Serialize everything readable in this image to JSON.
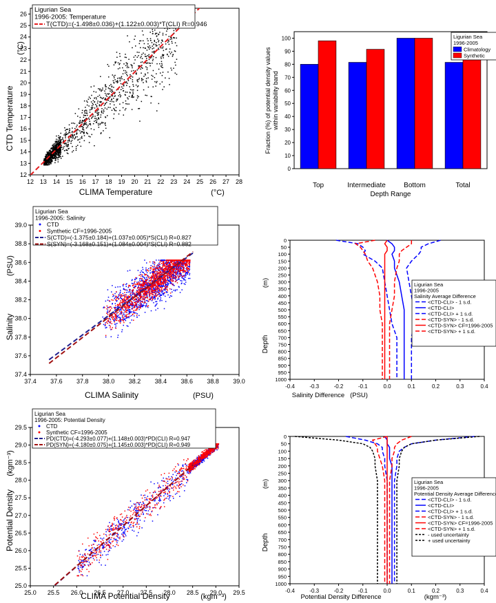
{
  "chart_data": [
    {
      "type": "scatter",
      "legend_title": "Ligurian Sea",
      "legend_subtitle": "1996-2005: Temperature",
      "xlabel": "CLIMA Temperature",
      "xunit": "(°C)",
      "ylabel": "CTD Temperature",
      "yunit": "(°C)",
      "xlim": [
        12,
        28
      ],
      "ylim": [
        12,
        26.5
      ],
      "xticks": [
        "12",
        "13",
        "14",
        "15",
        "16",
        "17",
        "18",
        "19",
        "20",
        "21",
        "22",
        "23",
        "24",
        "25",
        "26",
        "27",
        "28"
      ],
      "yticks": [
        "12",
        "13",
        "14",
        "15",
        "16",
        "17",
        "18",
        "19",
        "20",
        "21",
        "22",
        "23",
        "24",
        "25",
        "26"
      ],
      "fits": [
        {
          "label": "T(CTD)=(-1.498±0.036)+(1.122±0.003)*T(CLI) R=0.946",
          "intercept": -1.498,
          "slope": 1.122,
          "color": "#e41a1c"
        }
      ],
      "point_colors": [
        "#000000"
      ]
    },
    {
      "type": "bar",
      "legend_title": "Ligurian Sea",
      "legend_subtitle": "1996-2005",
      "xlabel": "Depth Range",
      "ylabel": "Fraction (%) of potential density values within variability band",
      "ylabel_lines": [
        "Fraction (%) of potential density values",
        "within variability band"
      ],
      "ylim": [
        0,
        105
      ],
      "yticks": [
        "0",
        "10",
        "20",
        "30",
        "40",
        "50",
        "60",
        "70",
        "80",
        "90",
        "100"
      ],
      "categories": [
        "Top",
        "Intermediate",
        "Bottom",
        "Total"
      ],
      "series": [
        {
          "name": "Climatology",
          "values": [
            80,
            81.5,
            100,
            81.5
          ],
          "color": "#0000ff"
        },
        {
          "name": "Synthetic",
          "values": [
            98,
            91.5,
            100,
            93
          ],
          "color": "#ff0000"
        }
      ]
    },
    {
      "type": "scatter",
      "legend_title": "Ligurian Sea",
      "legend_subtitle": "1996-2005: Salinity",
      "xlabel": "CLIMA Salinity",
      "xunit": "(PSU)",
      "ylabel": "Salinity",
      "yunit": "(PSU)",
      "xlim": [
        37.4,
        39.0
      ],
      "ylim": [
        37.4,
        39.0
      ],
      "xticks": [
        "37.4",
        "37.6",
        "37.8",
        "38.0",
        "38.2",
        "38.4",
        "38.6",
        "38.8",
        "39.0"
      ],
      "yticks": [
        "37.4",
        "37.6",
        "37.8",
        "38.0",
        "38.2",
        "38.4",
        "38.6",
        "38.8",
        "39.0"
      ],
      "series": [
        {
          "name": "CTD",
          "color": "#0000ff"
        },
        {
          "name": "Synthetic CF=1996-2005",
          "color": "#ff0000"
        }
      ],
      "fits": [
        {
          "label": "S(CTD)=(-1.375±0.184)+(1.037±0.005)*S(CLI) R=0.827",
          "intercept": -1.375,
          "slope": 1.037,
          "color": "#1f1f8f"
        },
        {
          "label": "S(SYN)=(-3.168±0.151)+(1.084±0.004)*S(CLI) R=0.882",
          "intercept": -3.168,
          "slope": 1.084,
          "color": "#a01010"
        }
      ]
    },
    {
      "type": "line",
      "legend_title": "Ligurian Sea",
      "legend_subtitle": "1996-2005",
      "legend_subtitle2": "Salinity Average Difference",
      "xlabel": "Salinity Difference",
      "xunit": "(PSU)",
      "ylabel": "Depth",
      "yunit": "(m)",
      "xlim": [
        -0.4,
        0.4
      ],
      "ylim": [
        0,
        1000
      ],
      "xticks": [
        "-0.4",
        "-0.3",
        "-0.2",
        "-0.1",
        "0.0",
        "0.1",
        "0.2",
        "0.3",
        "0.4"
      ],
      "yticks": [
        "0",
        "50",
        "100",
        "150",
        "200",
        "250",
        "300",
        "350",
        "400",
        "450",
        "500",
        "550",
        "600",
        "650",
        "700",
        "750",
        "800",
        "850",
        "900",
        "950",
        "1000"
      ],
      "depths": [
        0,
        25,
        50,
        75,
        100,
        150,
        200,
        300,
        400,
        500,
        600,
        700,
        800,
        900,
        1000
      ],
      "series": [
        {
          "name": "<CTD-CLI> - 1 s.d.",
          "color": "#0000ff",
          "dash": "6,3",
          "values": [
            -0.21,
            -0.12,
            -0.1,
            -0.09,
            -0.1,
            -0.05,
            -0.02,
            -0.01,
            0.0,
            0.01,
            0.02,
            0.04,
            0.04,
            0.04,
            0.04
          ]
        },
        {
          "name": "<CTD-CLI>",
          "color": "#0000ff",
          "dash": "",
          "values": [
            0.0,
            0.02,
            0.03,
            0.03,
            0.02,
            0.03,
            0.03,
            0.05,
            0.06,
            0.07,
            0.07,
            0.07,
            0.07,
            0.07,
            0.07
          ]
        },
        {
          "name": "<CTD-CLI> + 1 s.d.",
          "color": "#0000ff",
          "dash": "6,3",
          "values": [
            0.22,
            0.17,
            0.14,
            0.14,
            0.13,
            0.1,
            0.08,
            0.09,
            0.1,
            0.11,
            0.11,
            0.1,
            0.1,
            0.1,
            0.1
          ]
        },
        {
          "name": "<CTD-SYN> - 1 s.d.",
          "color": "#ff0000",
          "dash": "6,3",
          "values": [
            -0.05,
            -0.13,
            -0.11,
            -0.1,
            -0.09,
            -0.08,
            -0.06,
            -0.04,
            -0.03,
            -0.03,
            -0.02,
            -0.02,
            -0.02,
            -0.02,
            -0.02
          ]
        },
        {
          "name": "<CTD-SYN> CF=1996-2005",
          "color": "#ff0000",
          "dash": "",
          "values": [
            0.0,
            -0.01,
            0.0,
            0.0,
            -0.01,
            -0.01,
            -0.01,
            -0.01,
            -0.01,
            -0.01,
            -0.01,
            -0.01,
            -0.01,
            -0.01,
            -0.01
          ]
        },
        {
          "name": "<CTD-SYN> + 1 s.d.",
          "color": "#ff0000",
          "dash": "6,3",
          "values": [
            0.1,
            0.1,
            0.08,
            0.06,
            0.05,
            0.05,
            0.04,
            0.03,
            0.03,
            0.02,
            0.01,
            0.01,
            0.01,
            0.01,
            0.01
          ]
        }
      ]
    },
    {
      "type": "scatter",
      "legend_title": "Ligurian Sea",
      "legend_subtitle": "1996-2005: Potential Density",
      "xlabel": "CLIMA Potential Density",
      "xunit": "(kgm⁻³)",
      "ylabel": "Potential Density",
      "yunit": "(kgm⁻³)",
      "xlim": [
        25.0,
        29.5
      ],
      "ylim": [
        25.0,
        29.5
      ],
      "xticks": [
        "25.0",
        "25.5",
        "26.0",
        "26.5",
        "27.0",
        "27.5",
        "28.0",
        "28.5",
        "29.0",
        "29.5"
      ],
      "yticks": [
        "25.0",
        "25.5",
        "26.0",
        "26.5",
        "27.0",
        "27.5",
        "28.0",
        "28.5",
        "29.0",
        "29.5"
      ],
      "series": [
        {
          "name": "CTD",
          "color": "#0000ff"
        },
        {
          "name": "Synthetic CF=1996-2005",
          "color": "#ff0000"
        }
      ],
      "fits": [
        {
          "label": "PD(CTD)=(-4.293±0.077)+(1.148±0.003)*PD(CLI) R=0.947",
          "intercept": -4.293,
          "slope": 1.148,
          "color": "#1f1f8f"
        },
        {
          "label": "PD(SYN)=(-4.180±0.075)+(1.145±0.003)*PD(CLI) R=0.949",
          "intercept": -4.18,
          "slope": 1.145,
          "color": "#a01010"
        }
      ]
    },
    {
      "type": "line",
      "legend_title": "Ligurian Sea",
      "legend_subtitle": "1996-2005",
      "legend_subtitle2": "Potential Density Average Difference",
      "xlabel": "Potential Density Difference",
      "xunit": "(kgm⁻³)",
      "ylabel": "Depth",
      "yunit": "(m)",
      "xlim": [
        -0.4,
        0.4
      ],
      "ylim": [
        0,
        1000
      ],
      "xticks": [
        "-0.4",
        "-0.3",
        "-0.2",
        "-0.1",
        "0.0",
        "0.1",
        "0.2",
        "0.3",
        "0.4"
      ],
      "yticks": [
        "0",
        "50",
        "100",
        "150",
        "200",
        "250",
        "300",
        "350",
        "400",
        "450",
        "500",
        "550",
        "600",
        "650",
        "700",
        "750",
        "800",
        "850",
        "900",
        "950",
        "1000"
      ],
      "depths": [
        0,
        25,
        50,
        75,
        100,
        150,
        200,
        300,
        400,
        500,
        600,
        700,
        800,
        900,
        1000
      ],
      "series": [
        {
          "name": "<CTD-CLI> - 1 s.d.",
          "color": "#0000ff",
          "dash": "6,3",
          "values": [
            -0.17,
            -0.09,
            -0.04,
            -0.02,
            -0.02,
            -0.01,
            -0.01,
            0.0,
            0.0,
            0.0,
            0.0,
            0.0,
            0.0,
            0.0,
            0.0
          ]
        },
        {
          "name": "<CTD-CLI>",
          "color": "#0000ff",
          "dash": "",
          "values": [
            -0.01,
            0.0,
            0.0,
            0.01,
            0.01,
            0.01,
            0.02,
            0.02,
            0.02,
            0.02,
            0.02,
            0.02,
            0.02,
            0.02,
            0.02
          ]
        },
        {
          "name": "<CTD-CLI> + 1 s.d.",
          "color": "#0000ff",
          "dash": "6,3",
          "values": [
            0.36,
            0.2,
            0.1,
            0.07,
            0.05,
            0.04,
            0.04,
            0.03,
            0.03,
            0.03,
            0.03,
            0.03,
            0.03,
            0.03,
            0.03
          ]
        },
        {
          "name": "<CTD-SYN> - 1 s.d.",
          "color": "#ff0000",
          "dash": "6,3",
          "values": [
            0.0,
            -0.06,
            -0.05,
            -0.04,
            -0.04,
            -0.03,
            -0.02,
            -0.01,
            -0.01,
            -0.01,
            -0.01,
            -0.01,
            -0.01,
            -0.01,
            -0.01
          ]
        },
        {
          "name": "<CTD-SYN> CF=1996-2005",
          "color": "#ff0000",
          "dash": "",
          "values": [
            0.0,
            0.0,
            0.0,
            0.0,
            0.0,
            0.0,
            0.0,
            0.0,
            0.0,
            0.0,
            0.0,
            0.0,
            0.0,
            0.0,
            0.0
          ]
        },
        {
          "name": "<CTD-SYN> + 1 s.d.",
          "color": "#ff0000",
          "dash": "6,3",
          "values": [
            0.1,
            0.06,
            0.04,
            0.03,
            0.03,
            0.02,
            0.02,
            0.01,
            0.01,
            0.01,
            0.01,
            0.01,
            0.01,
            0.01,
            0.01
          ]
        },
        {
          "name": "- used uncertainty",
          "color": "#000000",
          "dash": "3,2",
          "values": [
            -0.38,
            -0.2,
            -0.1,
            -0.07,
            -0.06,
            -0.05,
            -0.05,
            -0.04,
            -0.04,
            -0.04,
            -0.04,
            -0.04,
            -0.04,
            -0.04,
            -0.04
          ]
        },
        {
          "name": "+ used uncertainty",
          "color": "#000000",
          "dash": "3,2",
          "values": [
            0.38,
            0.2,
            0.1,
            0.07,
            0.06,
            0.05,
            0.05,
            0.04,
            0.04,
            0.04,
            0.04,
            0.04,
            0.04,
            0.04,
            0.04
          ]
        }
      ]
    }
  ]
}
